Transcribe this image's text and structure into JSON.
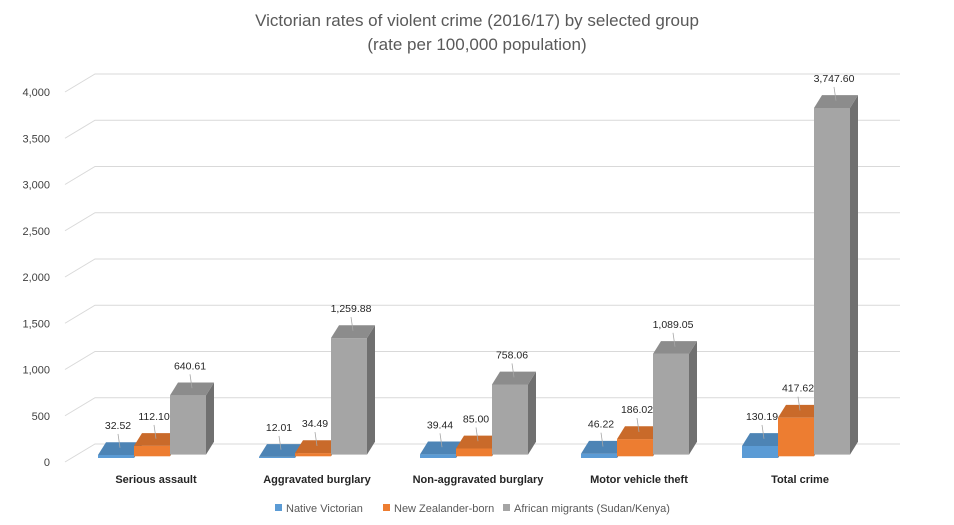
{
  "chart_data": {
    "type": "bar",
    "title": "Victorian rates of violent crime (2016/17) by selected group",
    "subtitle": "(rate per 100,000 population)",
    "categories": [
      "Serious assault",
      "Aggravated burglary",
      "Non-aggravated burglary",
      "Motor vehicle theft",
      "Total crime"
    ],
    "series": [
      {
        "name": "Native Victorian",
        "color": "#5b9bd5",
        "values": [
          32.52,
          12.01,
          39.44,
          46.22,
          130.19
        ],
        "labels": [
          "32.52",
          "12.01",
          "39.44",
          "46.22",
          "130.19"
        ]
      },
      {
        "name": "New Zealander-born",
        "color": "#ed7d31",
        "values": [
          112.1,
          34.49,
          85.0,
          186.02,
          417.62
        ],
        "labels": [
          "112.10",
          "34.49",
          "85.00",
          "186.02",
          "417.62"
        ]
      },
      {
        "name": "African migrants (Sudan/Kenya)",
        "color": "#a5a5a5",
        "values": [
          640.61,
          1259.88,
          758.06,
          1089.05,
          3747.6
        ],
        "labels": [
          "640.61",
          "1,259.88",
          "758.06",
          "1,089.05",
          "3,747.60"
        ]
      }
    ],
    "yticks": [
      0,
      500,
      1000,
      1500,
      2000,
      2500,
      3000,
      3500,
      4000
    ],
    "ytick_labels": [
      "0",
      "500",
      "1,000",
      "1,500",
      "2,000",
      "2,500",
      "3,000",
      "3,500",
      "4,000"
    ],
    "ylim": [
      0,
      4000
    ],
    "style": "3d-clustered-column",
    "grid": true,
    "legend_position": "bottom"
  }
}
